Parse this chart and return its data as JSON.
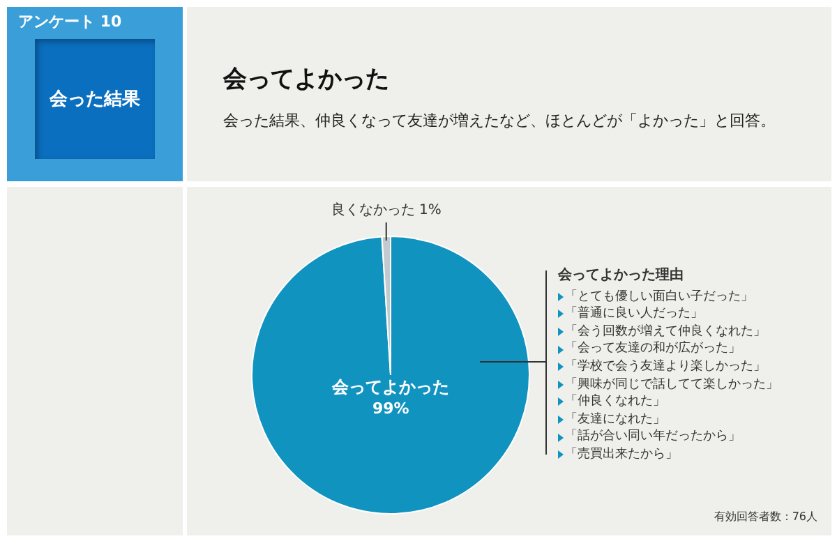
{
  "chart_data": {
    "type": "pie",
    "title": "会ってよかった",
    "subtitle": "会った結果、仲良くなって友達が増えたなど、ほとんどが「よかった」と回答。",
    "categories": [
      "会ってよかった",
      "良くなかった"
    ],
    "values": [
      99,
      1
    ],
    "value_labels": [
      "99%",
      "1%"
    ],
    "colors": [
      "#1193c0",
      "#c3cacd"
    ],
    "legend": false,
    "annotations": [
      "アンケート 10",
      "会った結果",
      "会ってよかった理由",
      "「とても優しい面白い子だった」",
      "「普通に良い人だった」",
      "「会う回数が増えて仲良くなれた」",
      "「会って友達の和が広がった」",
      "「学校で会う友達より楽しかった」",
      "「興味が同じで話してて楽しかった」",
      "「仲良くなれた」",
      "「友達になれた」",
      "「話が合い同い年だったから」",
      "「売買出来たから」",
      "有効回答者数：76人"
    ]
  }
}
